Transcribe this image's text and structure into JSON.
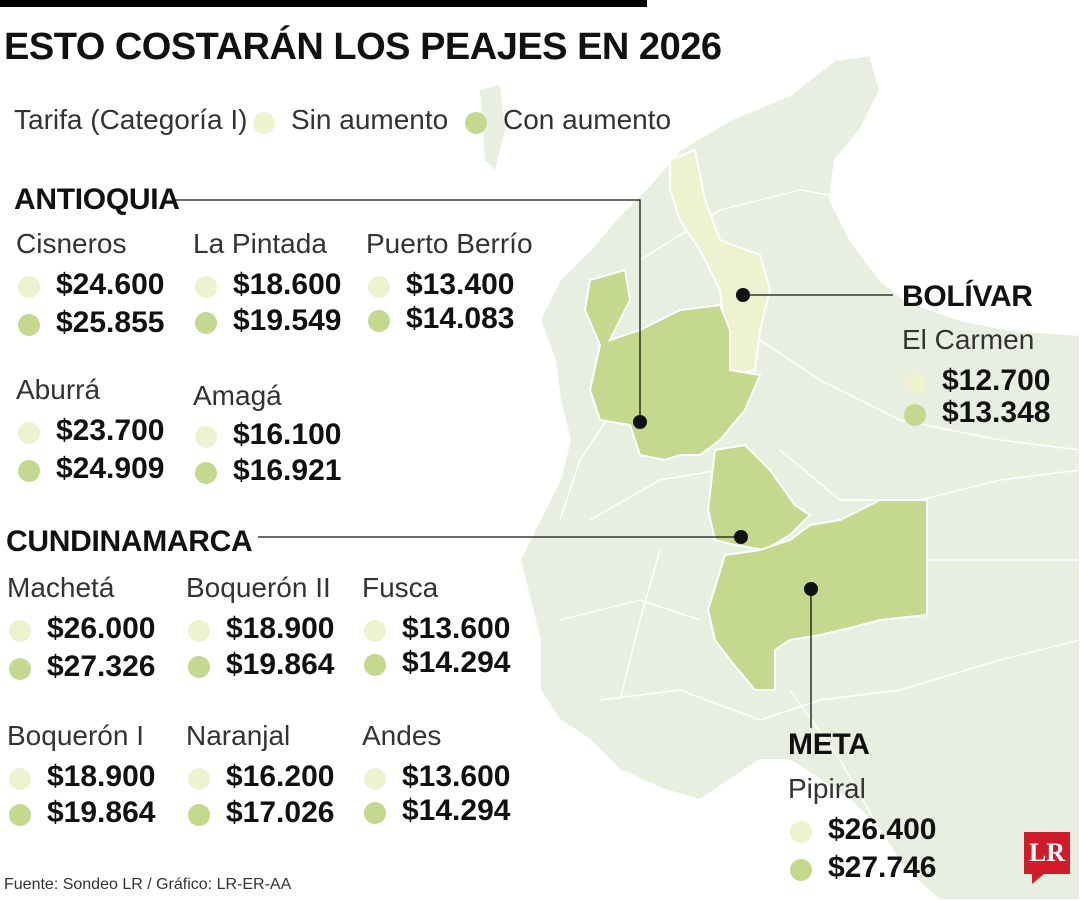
{
  "title": "ESTO COSTARÁN LOS PEAJES EN 2026",
  "legend": {
    "label": "Tarifa (Categoría I)",
    "items": [
      {
        "label": "Sin aumento",
        "color": "#eef2cf"
      },
      {
        "label": "Con aumento",
        "color": "#c4d88e"
      }
    ]
  },
  "regions": {
    "antioquia": {
      "name": "ANTIOQUIA",
      "tolls": [
        {
          "name": "Cisneros",
          "before": "$24.600",
          "after": "$25.855"
        },
        {
          "name": "La Pintada",
          "before": "$18.600",
          "after": "$19.549"
        },
        {
          "name": "Puerto Berrío",
          "before": "$13.400",
          "after": "$14.083"
        },
        {
          "name": "Aburrá",
          "before": "$23.700",
          "after": "$24.909"
        },
        {
          "name": "Amagá",
          "before": "$16.100",
          "after": "$16.921"
        }
      ]
    },
    "cundinamarca": {
      "name": "CUNDINAMARCA",
      "tolls": [
        {
          "name": "Machetá",
          "before": "$26.000",
          "after": "$27.326"
        },
        {
          "name": "Boquerón II",
          "before": "$18.900",
          "after": "$19.864"
        },
        {
          "name": "Fusca",
          "before": "$13.600",
          "after": "$14.294"
        },
        {
          "name": "Boquerón I",
          "before": "$18.900",
          "after": "$19.864"
        },
        {
          "name": "Naranjal",
          "before": "$16.200",
          "after": "$17.026"
        },
        {
          "name": "Andes",
          "before": "$13.600",
          "after": "$14.294"
        }
      ]
    },
    "bolivar": {
      "name": "BOLÍVAR",
      "tolls": [
        {
          "name": "El Carmen",
          "before": "$12.700",
          "after": "$13.348"
        }
      ]
    },
    "meta": {
      "name": "META",
      "tolls": [
        {
          "name": "Pipiral",
          "before": "$26.400",
          "after": "$27.746"
        }
      ]
    }
  },
  "source": "Fuente: Sondeo LR / Gráfico: LR-ER-AA",
  "logo": "LR",
  "map_colors": {
    "land": "#e9efe0",
    "borders": "#ffffff",
    "highlight_antioquia": "#c4d88e",
    "highlight_cundinamarca": "#c4d88e",
    "highlight_meta": "#c4d88e",
    "highlight_bolivar": "#eef2cf"
  }
}
